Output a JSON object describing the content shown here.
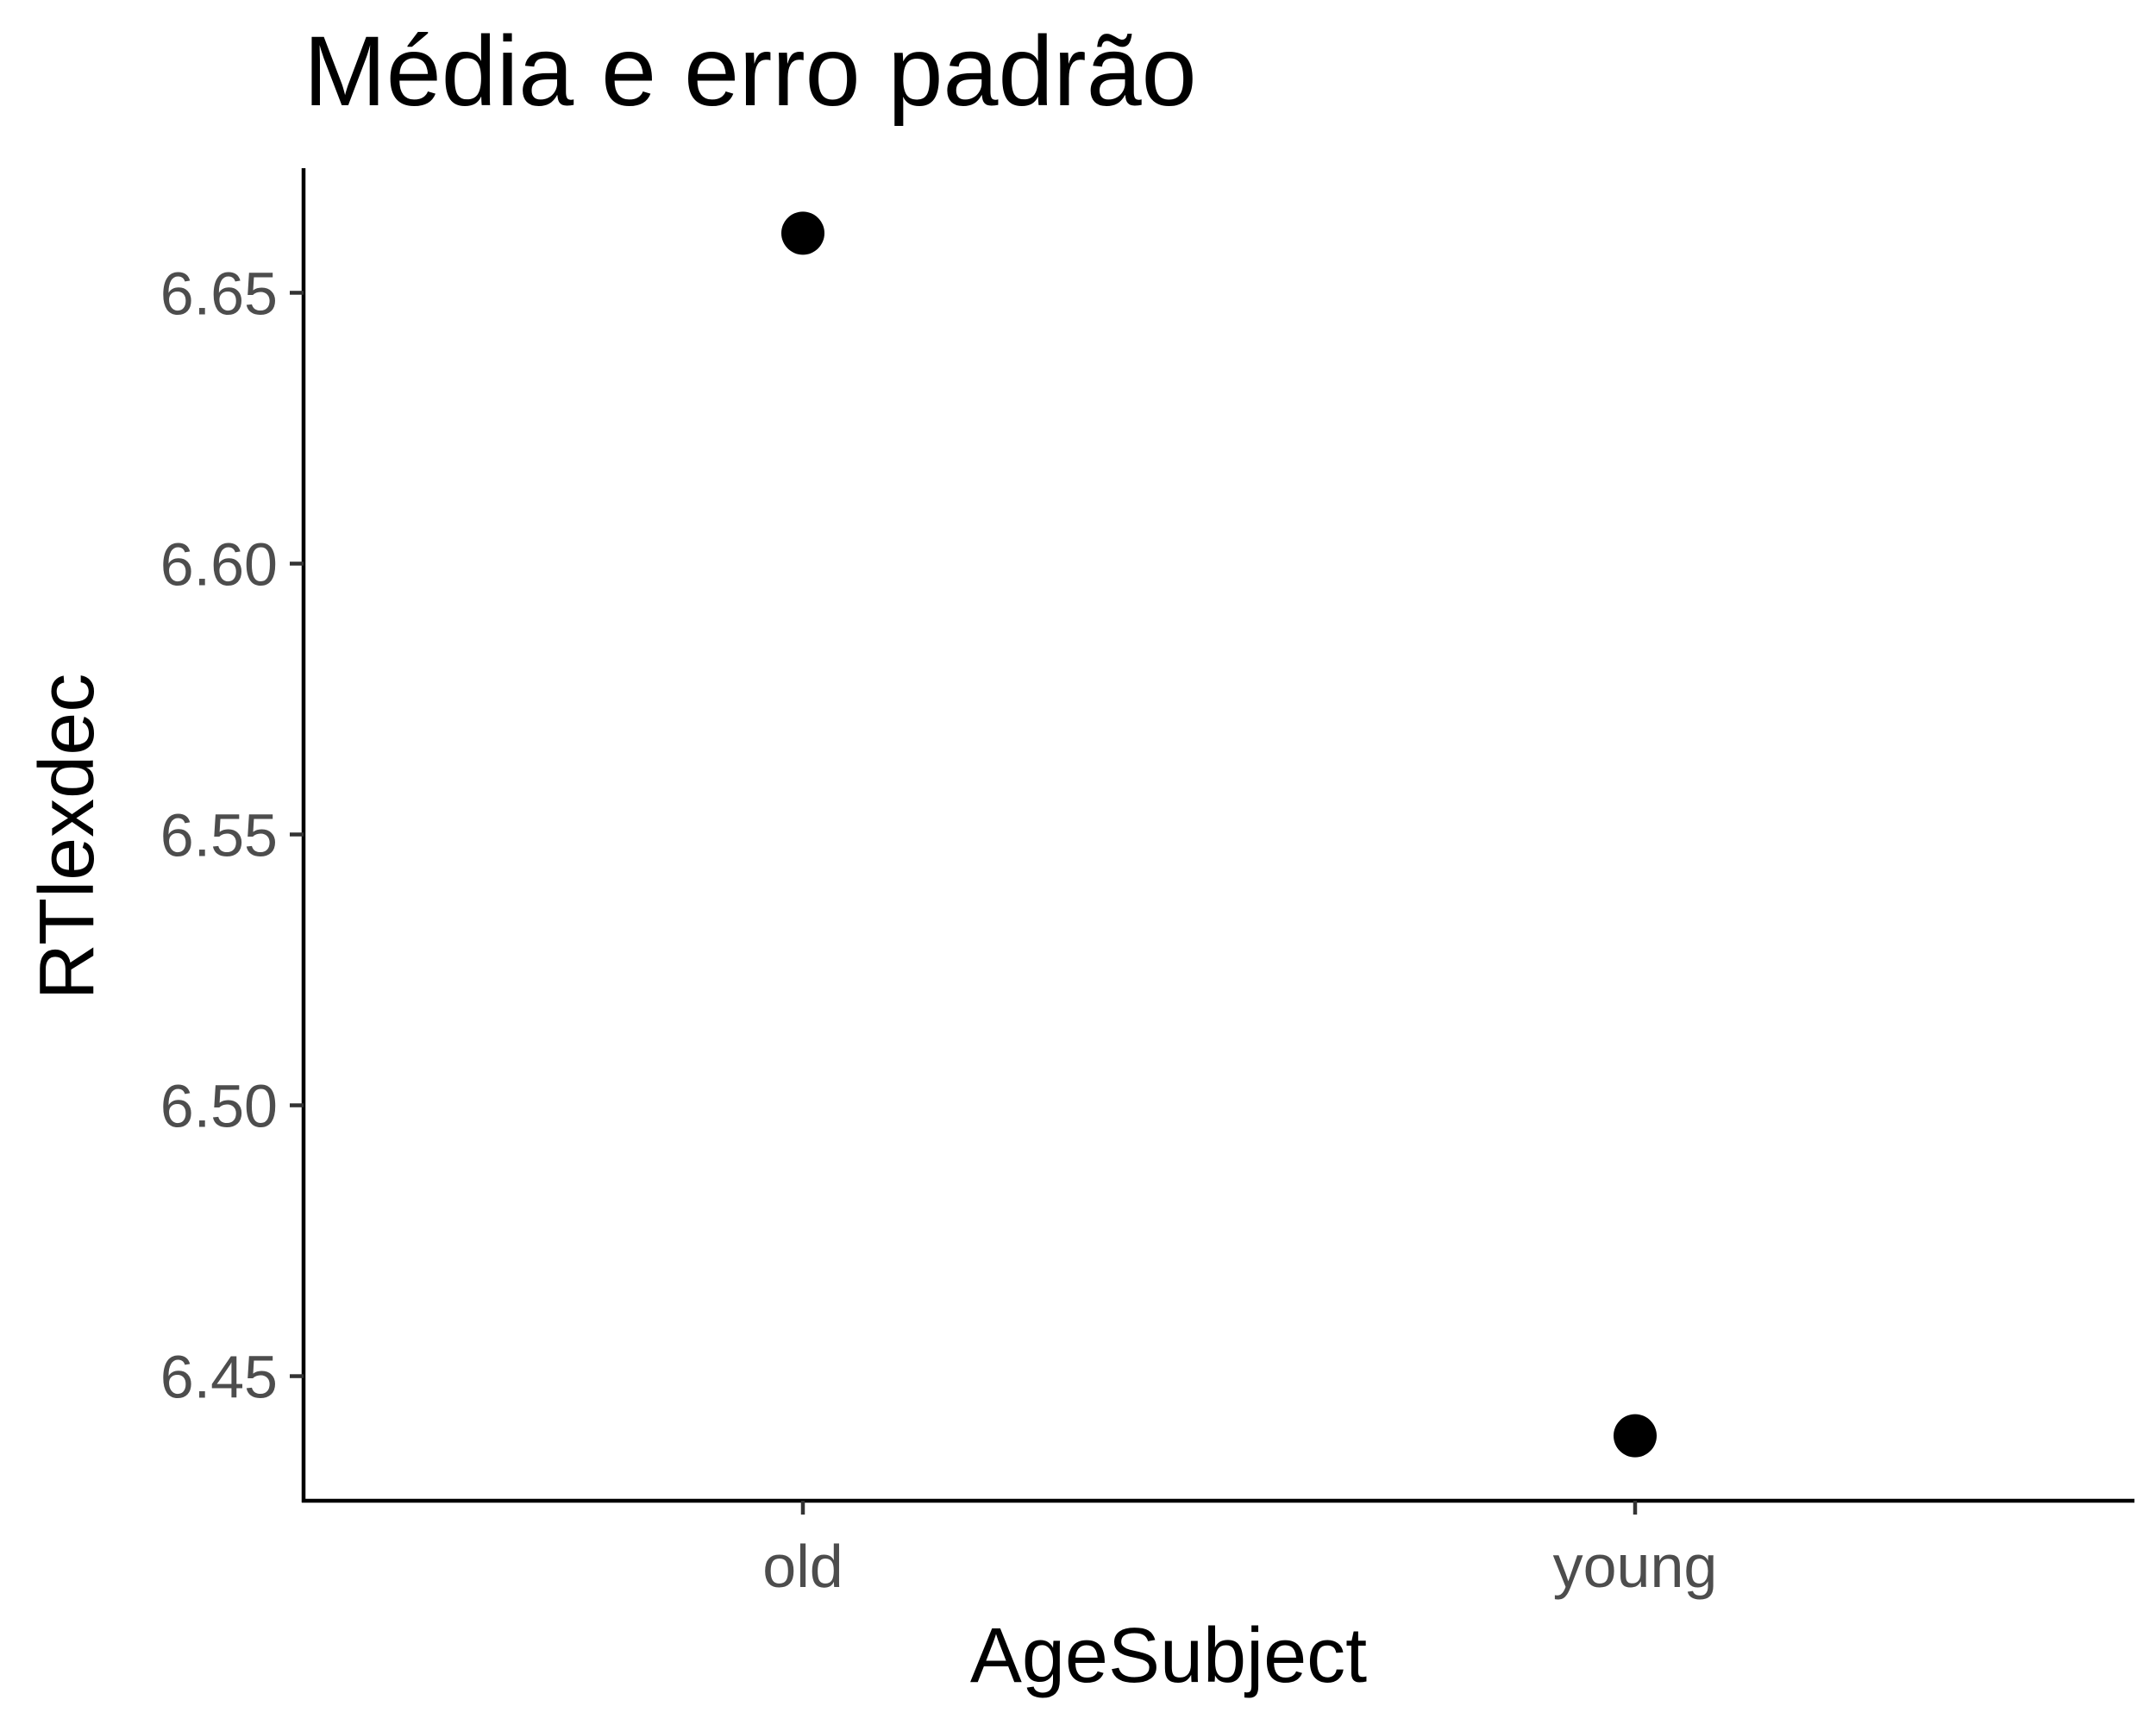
{
  "chart_data": {
    "type": "scatter",
    "title": "Média e erro padrão",
    "xlabel": "AgeSubject",
    "ylabel": "RTlexdec",
    "categories": [
      "old",
      "young"
    ],
    "series": [
      {
        "values": [
          6.661,
          6.439
        ]
      }
    ],
    "ylim": [
      6.427,
      6.673
    ],
    "yticks": [
      6.45,
      6.5,
      6.55,
      6.6,
      6.65
    ],
    "ytick_labels": [
      "6.45",
      "6.50",
      "6.55",
      "6.60",
      "6.65"
    ],
    "grid": false,
    "legend": "none",
    "point_color": "#000000",
    "tick_label_color": "#4d4d4d"
  }
}
